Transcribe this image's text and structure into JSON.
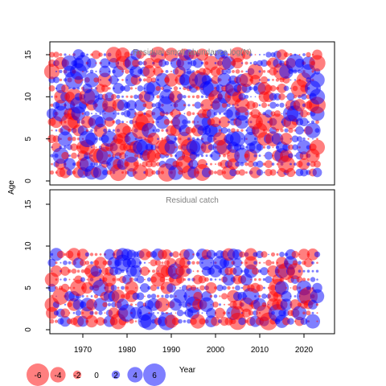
{
  "chart_data": {
    "type": "scatter",
    "subtype": "bubble residual plot",
    "panels": [
      {
        "title": "Residual smolt abundance log(N)",
        "x_ticks": [
          1970,
          1980,
          1990,
          2000,
          2010,
          2020
        ],
        "y_ticks": [
          0,
          5,
          10,
          15
        ],
        "xlim": [
          1963,
          2023
        ],
        "ylim": [
          0,
          15
        ],
        "ages": [
          1,
          2,
          3,
          4,
          5,
          6,
          7,
          8,
          9,
          10,
          11,
          12,
          13,
          14,
          15
        ],
        "seed": 17
      },
      {
        "title": "Residual catch",
        "x_ticks": [
          1970,
          1980,
          1990,
          2000,
          2010,
          2020
        ],
        "y_ticks": [
          0,
          5,
          10,
          15
        ],
        "xlim": [
          1963,
          2023
        ],
        "ylim": [
          0,
          15
        ],
        "ages": [
          1,
          2,
          3,
          4,
          5,
          6,
          7,
          8,
          9
        ],
        "seed": 91
      }
    ],
    "ylabel": "Age",
    "xlabel": "Year",
    "legend": {
      "placement": "bottom-left",
      "values": [
        -6,
        -4,
        -2,
        0,
        2,
        4,
        6
      ]
    },
    "colors": {
      "negative": "#ff0000",
      "positive": "#0000ff"
    },
    "grid": false
  }
}
